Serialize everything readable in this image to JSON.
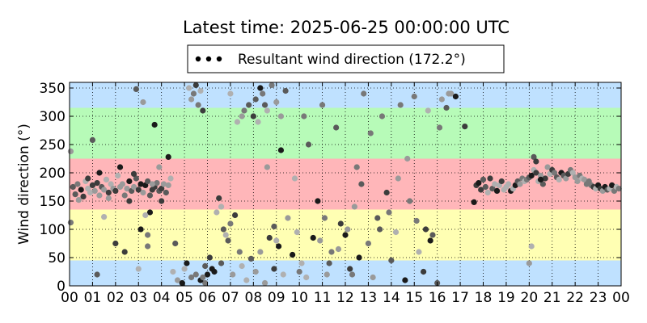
{
  "chart_data": {
    "type": "scatter",
    "title": "Latest time: 2025-06-25 00:00:00 UTC",
    "xlabel": "",
    "ylabel": "Wind direction (°)",
    "xlim": [
      0,
      24
    ],
    "ylim": [
      0,
      360
    ],
    "x_ticks": [
      {
        "value": 0,
        "label": "00"
      },
      {
        "value": 1,
        "label": "01"
      },
      {
        "value": 2,
        "label": "02"
      },
      {
        "value": 3,
        "label": "03"
      },
      {
        "value": 4,
        "label": "04"
      },
      {
        "value": 5,
        "label": "05"
      },
      {
        "value": 6,
        "label": "06"
      },
      {
        "value": 7,
        "label": "07"
      },
      {
        "value": 8,
        "label": "08"
      },
      {
        "value": 9,
        "label": "09"
      },
      {
        "value": 10,
        "label": "10"
      },
      {
        "value": 11,
        "label": "11"
      },
      {
        "value": 12,
        "label": "12"
      },
      {
        "value": 13,
        "label": "13"
      },
      {
        "value": 14,
        "label": "14"
      },
      {
        "value": 15,
        "label": "15"
      },
      {
        "value": 16,
        "label": "16"
      },
      {
        "value": 17,
        "label": "17"
      },
      {
        "value": 18,
        "label": "18"
      },
      {
        "value": 19,
        "label": "19"
      },
      {
        "value": 20,
        "label": "20"
      },
      {
        "value": 21,
        "label": "21"
      },
      {
        "value": 22,
        "label": "22"
      },
      {
        "value": 23,
        "label": "23"
      },
      {
        "value": 24,
        "label": "00"
      }
    ],
    "y_ticks": [
      0,
      50,
      100,
      150,
      200,
      250,
      300,
      350
    ],
    "grid": true,
    "legend": {
      "placement": "top-center",
      "label": "Resultant wind direction (172.2°)"
    },
    "bands": [
      {
        "from": 0,
        "to": 45,
        "color": "#bfe1ff"
      },
      {
        "from": 45,
        "to": 135,
        "color": "#ffffb3"
      },
      {
        "from": 135,
        "to": 225,
        "color": "#ffb6b9"
      },
      {
        "from": 225,
        "to": 315,
        "color": "#b7fbb8"
      },
      {
        "from": 315,
        "to": 360,
        "color": "#bfe1ff"
      }
    ],
    "series": [
      {
        "points": [
          [
            0.05,
            238
          ],
          [
            0.15,
            175
          ],
          [
            0.25,
            162
          ],
          [
            0.35,
            180
          ],
          [
            0.5,
            170
          ],
          [
            0.6,
            158
          ],
          [
            0.7,
            185
          ],
          [
            0.8,
            172
          ],
          [
            0.9,
            165
          ],
          [
            1.0,
            178
          ],
          [
            1.1,
            168
          ],
          [
            1.2,
            182
          ],
          [
            1.3,
            160
          ],
          [
            1.4,
            175
          ],
          [
            1.5,
            170
          ],
          [
            1.6,
            188
          ],
          [
            1.7,
            165
          ],
          [
            1.8,
            180
          ],
          [
            1.9,
            172
          ],
          [
            2.0,
            168
          ],
          [
            2.1,
            195
          ],
          [
            2.2,
            175
          ],
          [
            2.3,
            180
          ],
          [
            2.4,
            160
          ],
          [
            2.5,
            172
          ],
          [
            2.6,
            185
          ],
          [
            2.7,
            168
          ],
          [
            2.8,
            175
          ],
          [
            2.9,
            190
          ],
          [
            3.0,
            170
          ],
          [
            3.1,
            180
          ],
          [
            3.2,
            165
          ],
          [
            3.3,
            178
          ],
          [
            3.4,
            185
          ],
          [
            3.5,
            160
          ],
          [
            3.6,
            170
          ],
          [
            3.7,
            175
          ],
          [
            3.8,
            182
          ],
          [
            3.9,
            168
          ],
          [
            4.0,
            172
          ],
          [
            4.1,
            180
          ],
          [
            4.2,
            165
          ],
          [
            4.3,
            178
          ],
          [
            4.4,
            190
          ],
          [
            0.4,
            152
          ],
          [
            0.8,
            190
          ],
          [
            1.3,
            200
          ],
          [
            1.7,
            155
          ],
          [
            2.2,
            210
          ],
          [
            2.6,
            150
          ],
          [
            3.5,
            130
          ],
          [
            3.7,
            285
          ],
          [
            3.9,
            210
          ],
          [
            3.0,
            30
          ],
          [
            3.3,
            125
          ],
          [
            2.8,
            198
          ],
          [
            1.0,
            258
          ],
          [
            1.5,
            122
          ],
          [
            2.0,
            75
          ],
          [
            0.05,
            112
          ],
          [
            1.2,
            20
          ],
          [
            2.4,
            60
          ],
          [
            2.9,
            348
          ],
          [
            3.2,
            325
          ],
          [
            3.6,
            180
          ],
          [
            3.4,
            70
          ],
          [
            4.3,
            228
          ],
          [
            4.0,
            150
          ],
          [
            3.1,
            100
          ],
          [
            3.4,
            90
          ],
          [
            4.5,
            25
          ],
          [
            4.6,
            75
          ],
          [
            4.7,
            10
          ],
          [
            4.9,
            5
          ],
          [
            5.1,
            40
          ],
          [
            5.2,
            350
          ],
          [
            5.3,
            330
          ],
          [
            5.4,
            340
          ],
          [
            5.5,
            355
          ],
          [
            5.6,
            320
          ],
          [
            5.7,
            345
          ],
          [
            5.8,
            310
          ],
          [
            5.9,
            5
          ],
          [
            5.0,
            30
          ],
          [
            5.3,
            15
          ],
          [
            5.5,
            20
          ],
          [
            5.7,
            10
          ],
          [
            5.9,
            35
          ],
          [
            6.0,
            20
          ],
          [
            6.1,
            50
          ],
          [
            6.2,
            30
          ],
          [
            6.4,
            130
          ],
          [
            6.5,
            155
          ],
          [
            6.6,
            140
          ],
          [
            6.7,
            100
          ],
          [
            6.8,
            90
          ],
          [
            6.9,
            80
          ],
          [
            7.0,
            110
          ],
          [
            7.2,
            125
          ],
          [
            7.4,
            60
          ],
          [
            6.6,
            40
          ],
          [
            6.3,
            25
          ],
          [
            5.8,
            15
          ],
          [
            7.0,
            340
          ],
          [
            7.1,
            20
          ],
          [
            7.3,
            290
          ],
          [
            7.5,
            300
          ],
          [
            7.6,
            310
          ],
          [
            7.8,
            320
          ],
          [
            8.0,
            300
          ],
          [
            8.1,
            330
          ],
          [
            8.2,
            290
          ],
          [
            8.3,
            350
          ],
          [
            8.4,
            340
          ],
          [
            8.5,
            320
          ],
          [
            8.6,
            310
          ],
          [
            8.8,
            355
          ],
          [
            9.0,
            325
          ],
          [
            9.2,
            300
          ],
          [
            9.4,
            345
          ],
          [
            7.5,
            35
          ],
          [
            7.7,
            10
          ],
          [
            7.9,
            48
          ],
          [
            8.1,
            25
          ],
          [
            8.3,
            60
          ],
          [
            8.5,
            5
          ],
          [
            8.7,
            85
          ],
          [
            8.9,
            30
          ],
          [
            9.1,
            70
          ],
          [
            9.3,
            20
          ],
          [
            9.5,
            120
          ],
          [
            9.7,
            55
          ],
          [
            9.9,
            95
          ],
          [
            10.1,
            40
          ],
          [
            10.3,
            15
          ],
          [
            9.0,
            80
          ],
          [
            8.6,
            210
          ],
          [
            8.9,
            105
          ],
          [
            9.2,
            240
          ],
          [
            9.8,
            190
          ],
          [
            10.0,
            25
          ],
          [
            10.2,
            300
          ],
          [
            10.4,
            250
          ],
          [
            10.6,
            85
          ],
          [
            10.8,
            150
          ],
          [
            11.0,
            320
          ],
          [
            11.2,
            20
          ],
          [
            11.4,
            60
          ],
          [
            11.6,
            280
          ],
          [
            11.8,
            110
          ],
          [
            12.0,
            90
          ],
          [
            12.2,
            30
          ],
          [
            12.4,
            140
          ],
          [
            12.5,
            210
          ],
          [
            12.6,
            50
          ],
          [
            12.8,
            340
          ],
          [
            13.0,
            75
          ],
          [
            13.2,
            15
          ],
          [
            13.4,
            120
          ],
          [
            13.6,
            300
          ],
          [
            13.8,
            165
          ],
          [
            14.0,
            45
          ],
          [
            14.2,
            95
          ],
          [
            14.4,
            320
          ],
          [
            14.6,
            10
          ],
          [
            14.8,
            150
          ],
          [
            15.0,
            335
          ],
          [
            15.2,
            60
          ],
          [
            15.4,
            25
          ],
          [
            15.6,
            310
          ],
          [
            15.8,
            90
          ],
          [
            16.0,
            5
          ],
          [
            16.2,
            330
          ],
          [
            16.4,
            315
          ],
          [
            16.6,
            340
          ],
          [
            16.8,
            335
          ],
          [
            10.9,
            80
          ],
          [
            11.1,
            120
          ],
          [
            11.3,
            40
          ],
          [
            11.7,
            65
          ],
          [
            12.1,
            100
          ],
          [
            12.3,
            20
          ],
          [
            12.7,
            180
          ],
          [
            13.1,
            270
          ],
          [
            13.5,
            100
          ],
          [
            13.9,
            130
          ],
          [
            14.3,
            190
          ],
          [
            14.7,
            225
          ],
          [
            15.1,
            115
          ],
          [
            15.5,
            100
          ],
          [
            15.7,
            80
          ],
          [
            16.1,
            280
          ],
          [
            16.5,
            340
          ],
          [
            17.2,
            282
          ],
          [
            17.6,
            148
          ],
          [
            17.7,
            178
          ],
          [
            17.8,
            182
          ],
          [
            17.9,
            170
          ],
          [
            18.0,
            188
          ],
          [
            18.1,
            175
          ],
          [
            18.2,
            165
          ],
          [
            18.3,
            190
          ],
          [
            18.4,
            172
          ],
          [
            18.5,
            180
          ],
          [
            18.6,
            168
          ],
          [
            18.7,
            178
          ],
          [
            18.8,
            185
          ],
          [
            18.9,
            170
          ],
          [
            19.0,
            175
          ],
          [
            19.1,
            180
          ],
          [
            19.2,
            168
          ],
          [
            19.3,
            172
          ],
          [
            19.4,
            178
          ],
          [
            19.5,
            185
          ],
          [
            19.6,
            180
          ],
          [
            19.7,
            190
          ],
          [
            19.8,
            185
          ],
          [
            19.9,
            188
          ],
          [
            20.0,
            192
          ],
          [
            20.1,
            195
          ],
          [
            20.2,
            205
          ],
          [
            20.3,
            200
          ],
          [
            20.4,
            185
          ],
          [
            20.5,
            195
          ],
          [
            20.6,
            180
          ],
          [
            20.7,
            190
          ],
          [
            20.8,
            210
          ],
          [
            20.9,
            198
          ],
          [
            21.0,
            205
          ],
          [
            21.1,
            200
          ],
          [
            21.2,
            192
          ],
          [
            21.3,
            188
          ],
          [
            21.4,
            200
          ],
          [
            21.5,
            195
          ],
          [
            21.6,
            190
          ],
          [
            21.7,
            198
          ],
          [
            21.8,
            205
          ],
          [
            21.9,
            200
          ],
          [
            22.0,
            192
          ],
          [
            22.1,
            185
          ],
          [
            22.2,
            195
          ],
          [
            22.3,
            190
          ],
          [
            22.4,
            188
          ],
          [
            22.5,
            180
          ],
          [
            22.6,
            185
          ],
          [
            22.7,
            178
          ],
          [
            22.8,
            175
          ],
          [
            22.9,
            172
          ],
          [
            23.0,
            178
          ],
          [
            23.1,
            172
          ],
          [
            23.2,
            168
          ],
          [
            23.3,
            175
          ],
          [
            23.4,
            170
          ],
          [
            23.5,
            172
          ],
          [
            23.6,
            178
          ],
          [
            23.7,
            168
          ],
          [
            23.8,
            175
          ],
          [
            23.9,
            172
          ],
          [
            20.0,
            40
          ],
          [
            20.1,
            70
          ],
          [
            20.2,
            228
          ],
          [
            20.3,
            220
          ],
          [
            20.5,
            188
          ]
        ]
      }
    ]
  }
}
